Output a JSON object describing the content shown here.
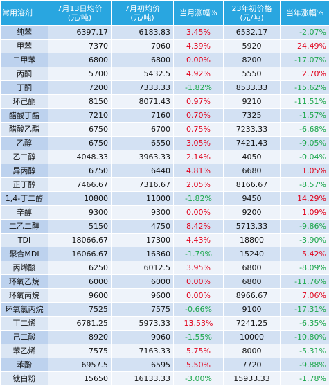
{
  "headers": [
    "常用溶剂",
    "7月13日均价\n(元/吨)",
    "7月初均价\n(元/吨)",
    "当月涨幅%",
    "23年初价格\n(元/吨)",
    "当年涨幅%"
  ],
  "rows": [
    {
      "name": "纯苯",
      "price_now": "6397.17",
      "price_month_start": "6183.83",
      "month_change": "3.45%",
      "price_year_start": "6532.17",
      "year_change": "-2.07%"
    },
    {
      "name": "甲苯",
      "price_now": "7370",
      "price_month_start": "7060",
      "month_change": "4.39%",
      "price_year_start": "5920",
      "year_change": "24.49%"
    },
    {
      "name": "二甲苯",
      "price_now": "6800",
      "price_month_start": "6800",
      "month_change": "0.00%",
      "price_year_start": "8200",
      "year_change": "-17.07%"
    },
    {
      "name": "丙酮",
      "price_now": "5700",
      "price_month_start": "5432.5",
      "month_change": "4.92%",
      "price_year_start": "5550",
      "year_change": "2.70%"
    },
    {
      "name": "丁酮",
      "price_now": "7200",
      "price_month_start": "7333.33",
      "month_change": "-1.82%",
      "price_year_start": "8533.33",
      "year_change": "-15.62%"
    },
    {
      "name": "环己酮",
      "price_now": "8150",
      "price_month_start": "8071.43",
      "month_change": "0.97%",
      "price_year_start": "9210",
      "year_change": "-11.51%"
    },
    {
      "name": "醋酸丁酯",
      "price_now": "7210",
      "price_month_start": "7160",
      "month_change": "0.70%",
      "price_year_start": "7325",
      "year_change": "-1.57%"
    },
    {
      "name": "醋酸乙酯",
      "price_now": "6750",
      "price_month_start": "6700",
      "month_change": "0.75%",
      "price_year_start": "7233.33",
      "year_change": "-6.68%"
    },
    {
      "name": "乙醇",
      "price_now": "6750",
      "price_month_start": "6550",
      "month_change": "3.05%",
      "price_year_start": "7421.43",
      "year_change": "-9.05%"
    },
    {
      "name": "乙二醇",
      "price_now": "4048.33",
      "price_month_start": "3963.33",
      "month_change": "2.14%",
      "price_year_start": "4050",
      "year_change": "-0.04%"
    },
    {
      "name": "异丙醇",
      "price_now": "6750",
      "price_month_start": "6440",
      "month_change": "4.81%",
      "price_year_start": "6680",
      "year_change": "1.05%"
    },
    {
      "name": "正丁醇",
      "price_now": "7466.67",
      "price_month_start": "7316.67",
      "month_change": "2.05%",
      "price_year_start": "8166.67",
      "year_change": "-8.57%"
    },
    {
      "name": "1,4-丁二醇",
      "price_now": "10800",
      "price_month_start": "11000",
      "month_change": "-1.82%",
      "price_year_start": "9450",
      "year_change": "14.29%"
    },
    {
      "name": "辛醇",
      "price_now": "9300",
      "price_month_start": "9300",
      "month_change": "0.00%",
      "price_year_start": "9200",
      "year_change": "1.09%"
    },
    {
      "name": "二乙二醇",
      "price_now": "5150",
      "price_month_start": "4750",
      "month_change": "8.42%",
      "price_year_start": "5713.33",
      "year_change": "-9.86%"
    },
    {
      "name": "TDI",
      "price_now": "18066.67",
      "price_month_start": "17300",
      "month_change": "4.43%",
      "price_year_start": "18800",
      "year_change": "-3.90%"
    },
    {
      "name": "聚合MDI",
      "price_now": "16066.67",
      "price_month_start": "16360",
      "month_change": "-1.79%",
      "price_year_start": "15240",
      "year_change": "5.42%"
    },
    {
      "name": "丙烯酸",
      "price_now": "6250",
      "price_month_start": "6012.5",
      "month_change": "3.95%",
      "price_year_start": "6800",
      "year_change": "-8.09%"
    },
    {
      "name": "环氧乙烷",
      "price_now": "6000",
      "price_month_start": "6000",
      "month_change": "0.00%",
      "price_year_start": "6800",
      "year_change": "-11.76%"
    },
    {
      "name": "环氧丙烷",
      "price_now": "9600",
      "price_month_start": "9600",
      "month_change": "0.00%",
      "price_year_start": "8966.67",
      "year_change": "7.06%"
    },
    {
      "name": "环氧氯丙烷",
      "price_now": "7525",
      "price_month_start": "7575",
      "month_change": "-0.66%",
      "price_year_start": "9100",
      "year_change": "-17.31%"
    },
    {
      "name": "丁二烯",
      "price_now": "6781.25",
      "price_month_start": "5973.33",
      "month_change": "13.53%",
      "price_year_start": "7241.25",
      "year_change": "-6.35%"
    },
    {
      "name": "己二酸",
      "price_now": "8920",
      "price_month_start": "9060",
      "month_change": "-1.55%",
      "price_year_start": "10000",
      "year_change": "-10.80%"
    },
    {
      "name": "苯乙烯",
      "price_now": "7575",
      "price_month_start": "7163.33",
      "month_change": "5.75%",
      "price_year_start": "8000",
      "year_change": "-5.31%"
    },
    {
      "name": "苯酚",
      "price_now": "6957.5",
      "price_month_start": "6595",
      "month_change": "5.50%",
      "price_year_start": "7720",
      "year_change": "-9.88%"
    },
    {
      "name": "钛白粉",
      "price_now": "15650",
      "price_month_start": "16133.33",
      "month_change": "-3.00%",
      "price_year_start": "15933.33",
      "year_change": "-1.78%"
    }
  ],
  "colors": {
    "header_bg": "#29a6e0",
    "positive": "#e0001a",
    "negative": "#1aa64a",
    "row_odd": "#d3e1f3",
    "row_even": "#eef3fa"
  }
}
